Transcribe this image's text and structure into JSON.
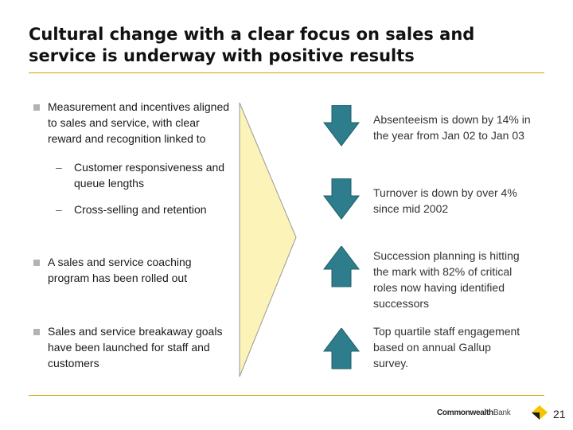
{
  "slide": {
    "title_line1": "Cultural change with a clear focus on sales and",
    "title_line2": "service is underway with positive results",
    "page_number": "21"
  },
  "left": {
    "bullet1": {
      "line1": "Measurement and incentives aligned",
      "line2": "to sales and service, with clear",
      "line3": "reward and recognition linked to"
    },
    "sub1": {
      "dash": "–",
      "line1": "Customer responsiveness and",
      "line2": "queue lengths"
    },
    "sub2": {
      "dash": "–",
      "line1": "Cross-selling and retention"
    },
    "bullet2": {
      "line1": "A sales and service coaching",
      "line2": "program has been rolled out"
    },
    "bullet3": {
      "line1": "Sales and service breakaway goals",
      "line2": "have been launched for staff and",
      "line3": "customers"
    }
  },
  "results": [
    {
      "direction": "down",
      "line1": "Absenteeism is down by 14% in",
      "line2": "the year from Jan 02 to Jan 03"
    },
    {
      "direction": "down",
      "line1": "Turnover is down by over 4%",
      "line2": "since mid 2002"
    },
    {
      "direction": "up",
      "line1": "Succession planning is hitting",
      "line2": "the mark with 82% of critical",
      "line3": "roles now having identified",
      "line4": "successors"
    },
    {
      "direction": "up",
      "line1": "Top quartile staff engagement",
      "line2": "based on annual Gallup",
      "line3": "survey."
    }
  ],
  "footer": {
    "brand_main": "Commonwealth",
    "brand_suffix": "Bank"
  },
  "colors": {
    "arrow_fill": "#2e7d8c",
    "chevron_fill": "#fbf3b8",
    "accent_rule": "#d9a400",
    "logo_yellow": "#f5c400"
  }
}
